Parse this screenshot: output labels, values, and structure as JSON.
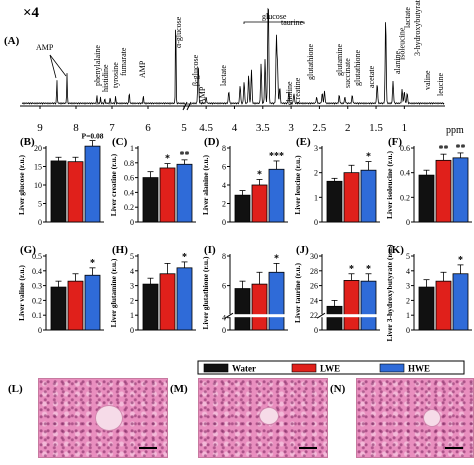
{
  "figure": {
    "magnify_label": "×4",
    "nmr_panel_label": "(A)",
    "ppm_label": "ppm",
    "histology_labels": [
      "(L)",
      "(M)",
      "(N)"
    ]
  },
  "chart_data": [
    {
      "type": "line",
      "panel": "(A)",
      "title": "",
      "xlabel": "ppm",
      "x_reversed": true,
      "xlim": [
        9.5,
        0.3
      ],
      "x_ticks": [
        9,
        8,
        7,
        6,
        5,
        4.5,
        4,
        3.5,
        3,
        2.5,
        2,
        1.5,
        1
      ],
      "annotations": [
        {
          "text": "AMP",
          "x": 8.3
        },
        {
          "text": "phenylalaine",
          "x": 7.35
        },
        {
          "text": "histidine",
          "x": 7.1
        },
        {
          "text": "tyrosine",
          "x": 6.9
        },
        {
          "text": "fumarate",
          "x": 6.5
        },
        {
          "text": "AMP",
          "x": 6.1
        },
        {
          "text": "α-glucose",
          "x": 5.23
        },
        {
          "text": "β-glucose",
          "x": 4.64
        },
        {
          "text": "AMP",
          "x": 4.5
        },
        {
          "text": "lactate",
          "x": 4.11
        },
        {
          "text": "glucose",
          "x": 3.6
        },
        {
          "text": "taurine",
          "x": 3.27
        },
        {
          "text": "choline",
          "x": 3.2
        },
        {
          "text": "creatine",
          "x": 3.04
        },
        {
          "text": "glutathione",
          "x": 2.95
        },
        {
          "text": "glutamine",
          "x": 2.45
        },
        {
          "text": "succinate",
          "x": 2.41
        },
        {
          "text": "glutathione",
          "x": 2.15
        },
        {
          "text": "acetate",
          "x": 1.92
        },
        {
          "text": "alanine",
          "x": 1.48
        },
        {
          "text": "lactate",
          "x": 1.33
        },
        {
          "text": "3-hydroxybutyrate",
          "x": 1.2
        },
        {
          "text": "valine",
          "x": 1.04
        },
        {
          "text": "isoleucine",
          "x": 1.0
        },
        {
          "text": "leucine",
          "x": 0.95
        }
      ]
    },
    {
      "type": "bar",
      "groups": [
        "Water",
        "LWE",
        "HWE"
      ],
      "colors": [
        "#111111",
        "#e0201b",
        "#2f6bd8"
      ],
      "legend": {
        "position": "bottom",
        "entries": [
          "Water",
          "LWE",
          "HWE"
        ]
      },
      "panels": [
        {
          "label": "(B)",
          "ylabel": "Liver glucose",
          "unit": "(r.u.)",
          "ylim": [
            0,
            20
          ],
          "ticks": [
            0,
            5,
            10,
            15,
            20
          ],
          "values": [
            16.5,
            16.3,
            20.5
          ],
          "errors": [
            1.0,
            1.2,
            1.5
          ],
          "sig": [
            "",
            "",
            "P=0.08"
          ],
          "broken": false
        },
        {
          "label": "(C)",
          "ylabel": "Liver creatine",
          "unit": "(r.u.)",
          "ylim": [
            0,
            1.0
          ],
          "ticks": [
            0.0,
            0.2,
            0.4,
            0.6,
            0.8,
            1.0
          ],
          "values": [
            0.6,
            0.73,
            0.78
          ],
          "errors": [
            0.08,
            0.06,
            0.06
          ],
          "sig": [
            "",
            "*",
            "**"
          ],
          "broken": false
        },
        {
          "label": "(D)",
          "ylabel": "Liver alanine",
          "unit": "(r.u.)",
          "ylim": [
            0,
            8
          ],
          "ticks": [
            0,
            2,
            4,
            6,
            8
          ],
          "values": [
            2.9,
            4.0,
            5.7
          ],
          "errors": [
            0.5,
            0.6,
            0.9
          ],
          "sig": [
            "",
            "*",
            "***"
          ],
          "broken": false
        },
        {
          "label": "(E)",
          "ylabel": "Liver leucine",
          "unit": "(r.u.)",
          "ylim": [
            0,
            3
          ],
          "ticks": [
            0,
            1,
            2,
            3
          ],
          "values": [
            1.65,
            2.0,
            2.1
          ],
          "errors": [
            0.12,
            0.3,
            0.35
          ],
          "sig": [
            "",
            "",
            "*"
          ],
          "broken": false
        },
        {
          "label": "(F)",
          "ylabel": "Liver isoleucine",
          "unit": "(r.u.)",
          "ylim": [
            0,
            0.6
          ],
          "ticks": [
            0.0,
            0.2,
            0.4,
            0.6
          ],
          "values": [
            0.38,
            0.5,
            0.52
          ],
          "errors": [
            0.04,
            0.05,
            0.04
          ],
          "sig": [
            "",
            "**",
            "**"
          ],
          "broken": false
        },
        {
          "label": "(G)",
          "ylabel": "Liver valine",
          "unit": "(r.u.)",
          "ylim": [
            0,
            0.5
          ],
          "ticks": [
            0.0,
            0.1,
            0.2,
            0.3,
            0.4,
            0.5
          ],
          "values": [
            0.29,
            0.33,
            0.37
          ],
          "errors": [
            0.04,
            0.05,
            0.05
          ],
          "sig": [
            "",
            "",
            "*"
          ],
          "broken": false
        },
        {
          "label": "(H)",
          "ylabel": "Liver glutamine",
          "unit": "(r.u.)",
          "ylim": [
            0,
            5
          ],
          "ticks": [
            0,
            1,
            2,
            3,
            4,
            5
          ],
          "values": [
            3.1,
            3.8,
            4.2
          ],
          "errors": [
            0.4,
            0.7,
            0.4
          ],
          "sig": [
            "",
            "",
            "*"
          ],
          "broken": false
        },
        {
          "label": "(I)",
          "ylabel": "Liver glutathione",
          "unit": "(r.u.)",
          "ylim": [
            0,
            8
          ],
          "ticks": [
            0,
            4,
            6,
            8
          ],
          "values": [
            5.8,
            6.1,
            6.9
          ],
          "errors": [
            0.5,
            0.8,
            0.6
          ],
          "sig": [
            "",
            "",
            "*"
          ],
          "broken": true,
          "break_value": 4.8
        },
        {
          "label": "(J)",
          "ylabel": "Liver taurine",
          "unit": "(r.u.)",
          "ylim": [
            0,
            30
          ],
          "ticks": [
            0,
            22,
            24,
            26,
            28,
            30
          ],
          "values": [
            23.2,
            26.7,
            26.6
          ],
          "errors": [
            0.8,
            0.9,
            1.0
          ],
          "sig": [
            "",
            "*",
            "*"
          ],
          "broken": true,
          "break_value": 21.5
        },
        {
          "label": "(K)",
          "ylabel": "Liver 3-hydroxybutyrate",
          "unit": "(r.u.)",
          "ylim": [
            0,
            5
          ],
          "ticks": [
            0,
            1,
            2,
            3,
            4,
            5
          ],
          "values": [
            2.9,
            3.3,
            3.8
          ],
          "errors": [
            0.5,
            0.6,
            0.6
          ],
          "sig": [
            "",
            "",
            "*"
          ],
          "broken": false
        }
      ]
    }
  ]
}
